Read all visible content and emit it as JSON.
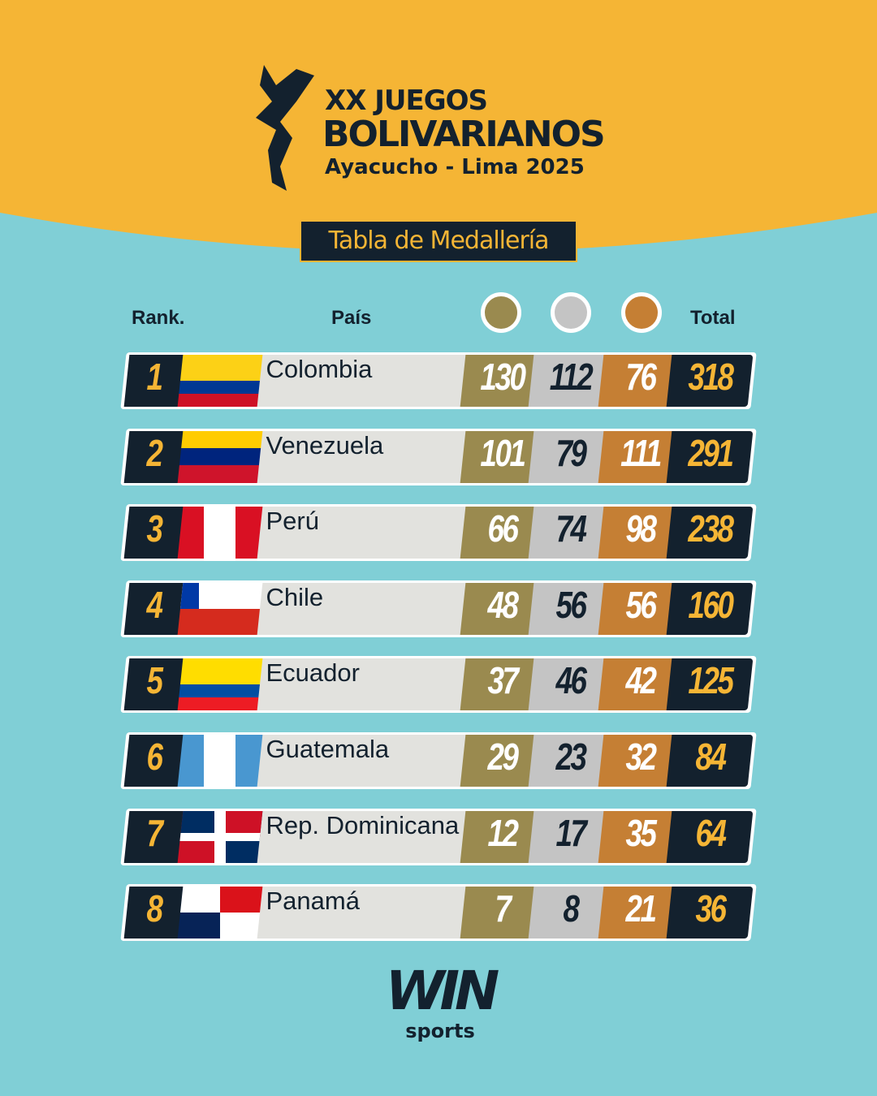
{
  "header": {
    "line1": "XX JUEGOS",
    "line2": "BOLIVARIANOS",
    "line3": "Ayacucho - Lima 2025",
    "subtitle": "Tabla de Medallería"
  },
  "columns": {
    "rank": "Rank.",
    "country": "País",
    "total": "Total"
  },
  "colors": {
    "gold": "#9A8A4F",
    "silver": "#C4C4C4",
    "bronze": "#C57F34",
    "dark": "#13212E",
    "yellow": "#F5B535",
    "background": "#80CFD6"
  },
  "rows": [
    {
      "rank": "1",
      "country": "Colombia",
      "gold": "130",
      "silver": "112",
      "bronze": "76",
      "total": "318",
      "flag": "colombia"
    },
    {
      "rank": "2",
      "country": "Venezuela",
      "gold": "101",
      "silver": "79",
      "bronze": "111",
      "total": "291",
      "flag": "venezuela"
    },
    {
      "rank": "3",
      "country": "Perú",
      "gold": "66",
      "silver": "74",
      "bronze": "98",
      "total": "238",
      "flag": "peru"
    },
    {
      "rank": "4",
      "country": "Chile",
      "gold": "48",
      "silver": "56",
      "bronze": "56",
      "total": "160",
      "flag": "chile"
    },
    {
      "rank": "5",
      "country": "Ecuador",
      "gold": "37",
      "silver": "46",
      "bronze": "42",
      "total": "125",
      "flag": "ecuador"
    },
    {
      "rank": "6",
      "country": "Guatemala",
      "gold": "29",
      "silver": "23",
      "bronze": "32",
      "total": "84",
      "flag": "guatemala"
    },
    {
      "rank": "7",
      "country": "Rep. Dominicana",
      "gold": "12",
      "silver": "17",
      "bronze": "35",
      "total": "64",
      "flag": "dominican-republic"
    },
    {
      "rank": "8",
      "country": "Panamá",
      "gold": "7",
      "silver": "8",
      "bronze": "21",
      "total": "36",
      "flag": "panama"
    }
  ],
  "footer": {
    "brand": "WIN",
    "brand_sub": "sports"
  }
}
